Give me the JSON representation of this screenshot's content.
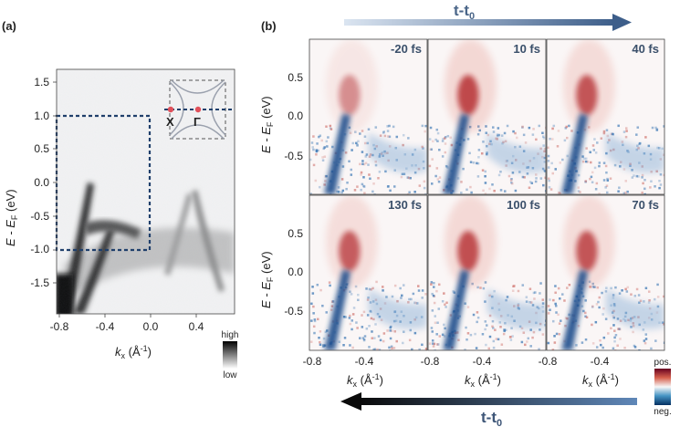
{
  "panel_a": {
    "label": "(a)",
    "y_axis_label": "E - E",
    "y_axis_sub": "F",
    "y_axis_unit": " (eV)",
    "x_axis_label": "k",
    "x_axis_sub": "x",
    "x_axis_unit": " (Å",
    "x_axis_unit_sup": "-1",
    "x_axis_close": ")",
    "colorbar_high": "high",
    "colorbar_low": "low",
    "inset_labels": [
      "X",
      "Γ"
    ]
  },
  "panel_b": {
    "label": "(b)",
    "top_arrow_label": "t-t",
    "top_arrow_sub": "0",
    "bottom_arrow_label": "t-t",
    "bottom_arrow_sub": "0",
    "y_axis_label": "E - E",
    "y_axis_sub": "F",
    "y_axis_unit": " (eV)",
    "x_axis_label": "k",
    "x_axis_sub": "x",
    "x_axis_unit": " (Å",
    "x_axis_unit_sup": "-1",
    "x_axis_close": ")",
    "colorbar_pos": "pos.",
    "colorbar_neg": "neg.",
    "time_labels": [
      "-20 fs",
      "10 fs",
      "40 fs",
      "130 fs",
      "100 fs",
      "70 fs"
    ]
  },
  "colors": {
    "box_dashed": "#1f3f6b",
    "arrow_start": "#c8d6e8",
    "arrow_end": "#3d5e8a",
    "pos": "#b2182b",
    "neg": "#2166ac",
    "inset_dot": "#e0505a"
  },
  "chart_data": [
    {
      "type": "heatmap",
      "panel": "(a)",
      "description_of_axes": "ARPES intensity, grayscale",
      "xlim": [
        -0.85,
        0.6
      ],
      "ylim": [
        -2.0,
        1.75
      ],
      "x_ticks": [
        "-0.8",
        "-0.4",
        "0.0",
        "0.4"
      ],
      "y_ticks": [
        "1.5",
        "1.0",
        "0.5",
        "0.0",
        "-0.5",
        "-1.0",
        "-1.5"
      ],
      "colorbar": [
        "high",
        "low"
      ],
      "dashed_box": {
        "k": [
          -0.85,
          0.0
        ],
        "E": [
          -1.0,
          1.0
        ]
      }
    },
    {
      "type": "heatmap",
      "panel": "(b)",
      "grid": "2x3",
      "xlim": [
        -0.8,
        -0.05
      ],
      "ylim": [
        -1.0,
        0.95
      ],
      "x_ticks": [
        "-0.8",
        "-0.4"
      ],
      "y_ticks": [
        "0.5",
        "0.0",
        "-0.5"
      ],
      "frames": [
        "-20 fs",
        "10 fs",
        "40 fs",
        "130 fs",
        "100 fs",
        "70 fs"
      ],
      "colorbar": [
        "pos.",
        "neg."
      ]
    }
  ]
}
